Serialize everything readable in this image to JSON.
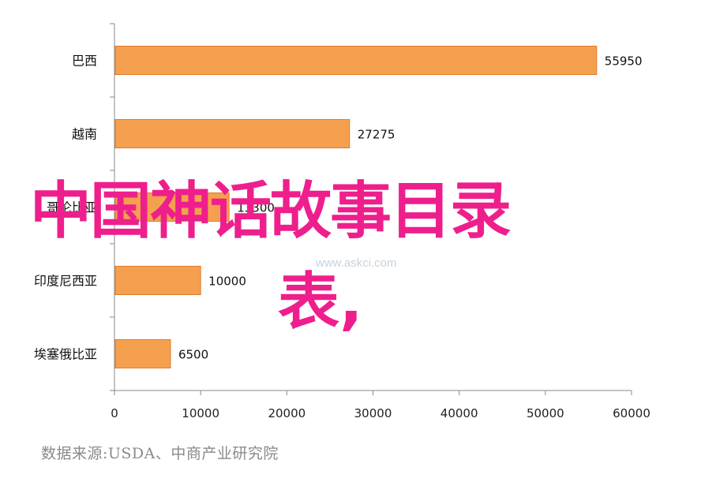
{
  "chart_data": {
    "type": "bar",
    "orientation": "horizontal",
    "categories": [
      "巴西",
      "越南",
      "哥伦比亚",
      "印度尼西亚",
      "埃塞俄比亚"
    ],
    "values": [
      55950,
      27275,
      13300,
      10000,
      6500
    ],
    "xlim": [
      0,
      60000
    ],
    "xticks": [
      "0",
      "10000",
      "20000",
      "30000",
      "40000",
      "50000",
      "60000"
    ],
    "bar_color": "#f5a04e",
    "bar_edge_color": "#e07b2e",
    "grid": false
  },
  "source_text": "数据来源:USDA、中商产业研究院",
  "overlay": {
    "line1": "中国神话故事目录",
    "line2": "表,",
    "color": "#ee1f8c"
  },
  "watermark": {
    "url": "www.askci.com"
  }
}
